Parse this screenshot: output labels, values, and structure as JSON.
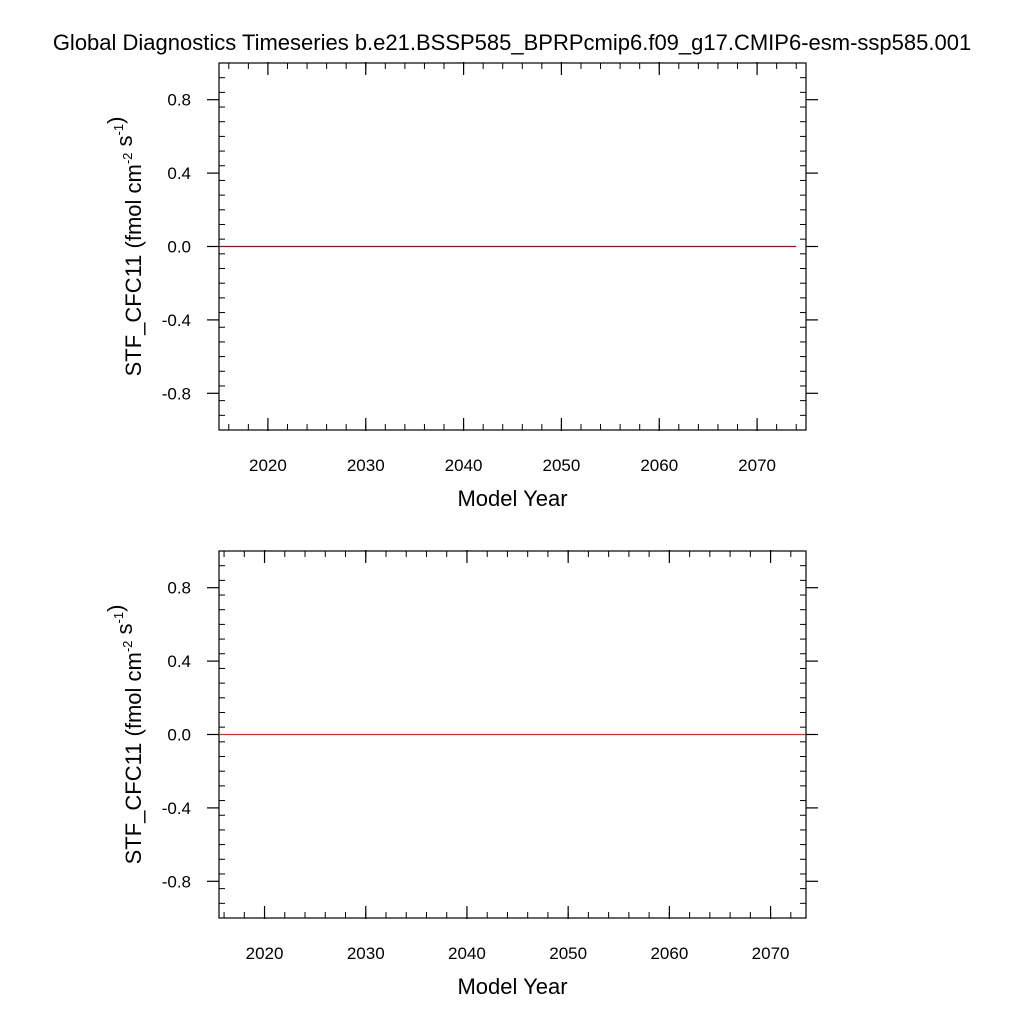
{
  "figure": {
    "title": "Global Diagnostics Timeseries b.e21.BSSP585_BPRPcmip6.f09_g17.CMIP6-esm-ssp585.001"
  },
  "chart_data": [
    {
      "type": "line",
      "xlabel": "Model Year",
      "ylabel_main": "STF_CFC11 (fmol cm",
      "ylabel_sup1": "-2",
      "ylabel_mid": " s",
      "ylabel_sup2": "-1",
      "ylabel_end": ")",
      "xlim": [
        2015,
        2075
      ],
      "ylim": [
        -1.0,
        1.0
      ],
      "x_ticks": [
        2020,
        2030,
        2040,
        2050,
        2060,
        2070
      ],
      "x_tick_labels": [
        "2020",
        "2030",
        "2040",
        "2050",
        "2060",
        "2070"
      ],
      "y_ticks": [
        0.8,
        0.4,
        0.0,
        -0.4,
        -0.8
      ],
      "y_tick_labels": [
        "0.8",
        "0.4",
        "0.0",
        "-0.4",
        "-0.8"
      ],
      "series": [
        {
          "color": "#8b1a1a",
          "x": [
            2015,
            2074
          ],
          "y": [
            0.0,
            0.0
          ]
        }
      ]
    },
    {
      "type": "line",
      "xlabel": "Model Year",
      "ylabel_main": "STF_CFC11 (fmol cm",
      "ylabel_sup1": "-2",
      "ylabel_mid": " s",
      "ylabel_sup2": "-1",
      "ylabel_end": ")",
      "xlim": [
        2015.5,
        2073.5
      ],
      "ylim": [
        -1.0,
        1.0
      ],
      "x_ticks": [
        2020,
        2030,
        2040,
        2050,
        2060,
        2070
      ],
      "x_tick_labels": [
        "2020",
        "2030",
        "2040",
        "2050",
        "2060",
        "2070"
      ],
      "y_ticks": [
        0.8,
        0.4,
        0.0,
        -0.4,
        -0.8
      ],
      "y_tick_labels": [
        "0.8",
        "0.4",
        "0.0",
        "-0.4",
        "-0.8"
      ],
      "series": [
        {
          "color": "#c0392b",
          "x": [
            2015.5,
            2073.5
          ],
          "y": [
            0.0,
            0.0
          ]
        }
      ]
    }
  ]
}
